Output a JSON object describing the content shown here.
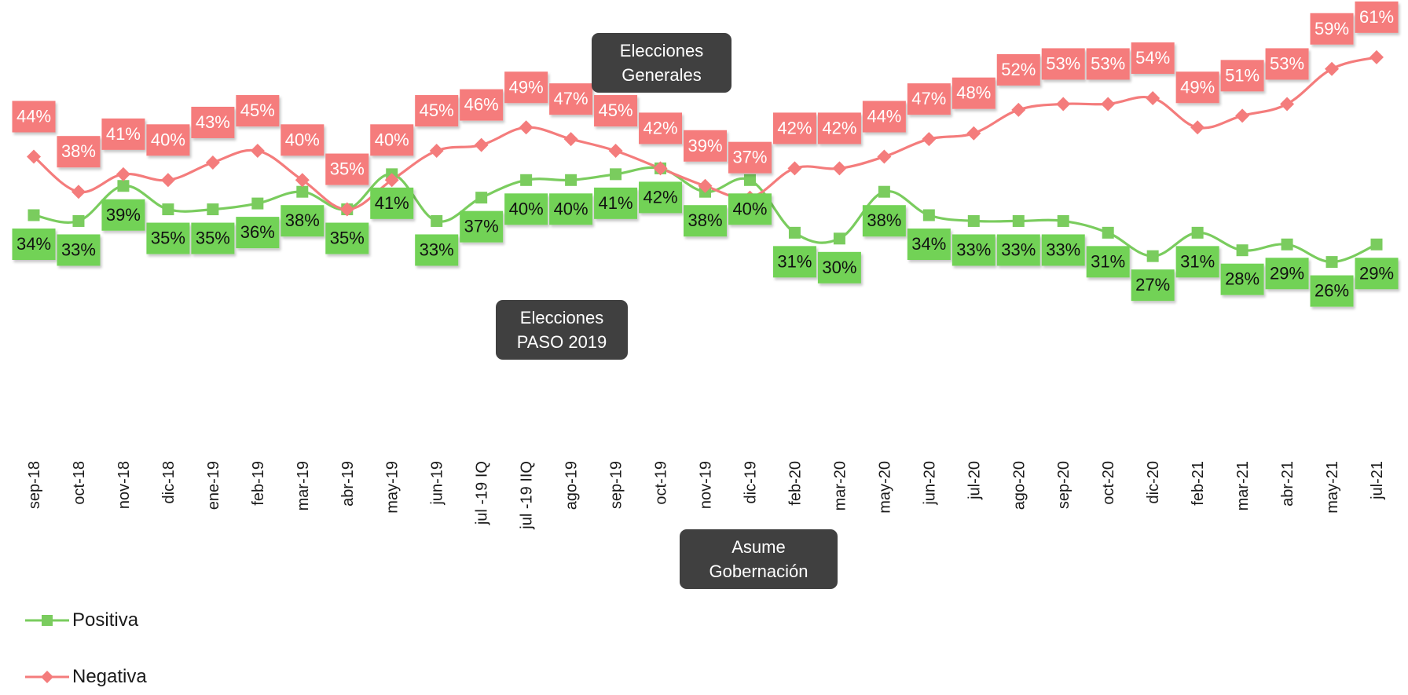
{
  "chart_data": {
    "type": "line",
    "categories": [
      "sep-18",
      "oct-18",
      "nov-18",
      "dic-18",
      "ene-19",
      "feb-19",
      "mar-19",
      "abr-19",
      "may-19",
      "jun-19",
      "jul -19 IQ",
      "jul -19 IIQ",
      "ago-19",
      "sep-19",
      "oct-19",
      "nov-19",
      "dic-19",
      "feb-20",
      "mar-20",
      "may-20",
      "jun-20",
      "jul-20",
      "ago-20",
      "sep-20",
      "oct-20",
      "dic-20",
      "feb-21",
      "mar-21",
      "abr-21",
      "may-21",
      "jul-21"
    ],
    "series": [
      {
        "name": "Positiva",
        "color": "#7acc5e",
        "marker": "square",
        "values": [
          34,
          33,
          39,
          35,
          35,
          36,
          38,
          35,
          41,
          33,
          37,
          40,
          40,
          41,
          42,
          38,
          40,
          31,
          30,
          38,
          34,
          33,
          33,
          33,
          31,
          27,
          31,
          28,
          29,
          26,
          29
        ]
      },
      {
        "name": "Negativa",
        "color": "#f47c7c",
        "marker": "diamond",
        "values": [
          44,
          38,
          41,
          40,
          43,
          45,
          40,
          35,
          40,
          45,
          46,
          49,
          47,
          45,
          42,
          39,
          37,
          42,
          42,
          44,
          47,
          48,
          52,
          53,
          53,
          54,
          49,
          51,
          53,
          59,
          61
        ]
      }
    ],
    "value_suffix": "%",
    "legend_position": "bottom-left",
    "grid": false,
    "ylim": [
      20,
      65
    ]
  },
  "annotations": {
    "generales": [
      "Elecciones",
      "Generales"
    ],
    "paso": [
      "Elecciones",
      "PASO 2019"
    ],
    "gobernacion": [
      "Asume",
      "Gobernación"
    ]
  },
  "legend": {
    "positiva": "Positiva",
    "negativa": "Negativa"
  },
  "colors": {
    "positiva_line": "#7acc5e",
    "positiva_label_bg": "#72d257",
    "negativa_line": "#f47c7c",
    "negativa_label_bg": "#f57b7b",
    "callout_bg": "#404040"
  }
}
